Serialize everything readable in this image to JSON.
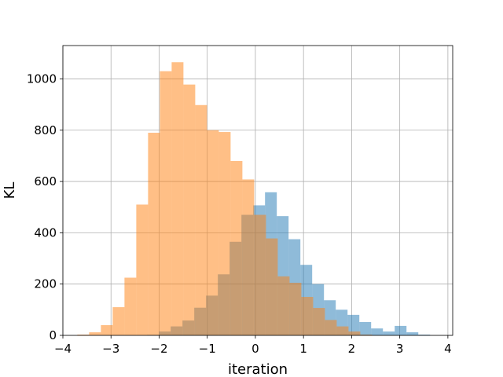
{
  "chart_data": {
    "type": "bar",
    "title": "",
    "xlabel": "iteration",
    "ylabel": "KL",
    "xlim": [
      -4.0,
      4.1
    ],
    "ylim": [
      0,
      1130
    ],
    "xticks": [
      -4,
      -3,
      -2,
      -1,
      0,
      1,
      2,
      3,
      4
    ],
    "yticks": [
      0,
      200,
      400,
      600,
      800,
      1000
    ],
    "grid": true,
    "legend": "none",
    "alpha": 0.5,
    "series": [
      {
        "color": "#1f77b4",
        "bin_width": 0.245,
        "bins": [
          [
            -2.25,
            -2.005,
            2
          ],
          [
            -2.005,
            -1.76,
            15
          ],
          [
            -1.76,
            -1.515,
            35
          ],
          [
            -1.515,
            -1.27,
            58
          ],
          [
            -1.27,
            -1.025,
            108
          ],
          [
            -1.025,
            -0.78,
            155
          ],
          [
            -0.78,
            -0.535,
            238
          ],
          [
            -0.535,
            -0.29,
            365
          ],
          [
            -0.29,
            -0.045,
            470
          ],
          [
            -0.045,
            0.2,
            507
          ],
          [
            0.2,
            0.445,
            558
          ],
          [
            0.445,
            0.69,
            465
          ],
          [
            0.69,
            0.935,
            375
          ],
          [
            0.935,
            1.18,
            275
          ],
          [
            1.18,
            1.425,
            200
          ],
          [
            1.425,
            1.67,
            137
          ],
          [
            1.67,
            1.915,
            100
          ],
          [
            1.915,
            2.16,
            80
          ],
          [
            2.16,
            2.405,
            52
          ],
          [
            2.405,
            2.65,
            27
          ],
          [
            2.65,
            2.895,
            15
          ],
          [
            2.895,
            3.14,
            37
          ],
          [
            3.14,
            3.385,
            12
          ],
          [
            3.385,
            3.63,
            3
          ]
        ]
      },
      {
        "color": "#ff7f0e",
        "bin_width": 0.245,
        "bins": [
          [
            -3.7,
            -3.455,
            3
          ],
          [
            -3.455,
            -3.21,
            12
          ],
          [
            -3.21,
            -2.965,
            40
          ],
          [
            -2.965,
            -2.72,
            110
          ],
          [
            -2.72,
            -2.475,
            225
          ],
          [
            -2.475,
            -2.23,
            510
          ],
          [
            -2.23,
            -1.985,
            790
          ],
          [
            -1.985,
            -1.74,
            1030
          ],
          [
            -1.74,
            -1.495,
            1065
          ],
          [
            -1.495,
            -1.25,
            978
          ],
          [
            -1.25,
            -1.005,
            898
          ],
          [
            -1.005,
            -0.76,
            800
          ],
          [
            -0.76,
            -0.515,
            793
          ],
          [
            -0.515,
            -0.27,
            680
          ],
          [
            -0.27,
            -0.025,
            608
          ],
          [
            -0.025,
            0.22,
            470
          ],
          [
            0.22,
            0.465,
            378
          ],
          [
            0.465,
            0.71,
            230
          ],
          [
            0.71,
            0.955,
            205
          ],
          [
            0.955,
            1.2,
            150
          ],
          [
            1.2,
            1.445,
            107
          ],
          [
            1.445,
            1.69,
            60
          ],
          [
            1.69,
            1.935,
            35
          ],
          [
            1.935,
            2.18,
            15
          ],
          [
            2.18,
            2.425,
            3
          ]
        ]
      }
    ]
  }
}
